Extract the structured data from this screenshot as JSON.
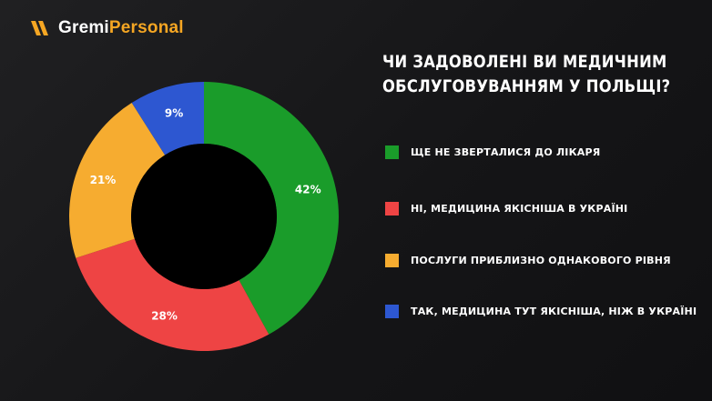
{
  "brand": {
    "part1": "Gremi",
    "part2": "Personal",
    "mark_icon": "double-chevron-logo-icon"
  },
  "title_lines": [
    "ЧИ ЗАДОВОЛЕНІ ВИ МЕДИЧНИМ",
    "ОБСЛУГОВУВАННЯМ У ПОЛЬЩІ?"
  ],
  "colors": {
    "green": "#1a9c2a",
    "red": "#ee4444",
    "orange": "#f6ac30",
    "blue": "#2d57d1",
    "brand_orange": "#f5a623"
  },
  "chart_data": {
    "type": "pie",
    "donut": true,
    "title": "ЧИ ЗАДОВОЛЕНІ ВИ МЕДИЧНИМ ОБСЛУГОВУВАННЯМ У ПОЛЬЩІ?",
    "series": [
      {
        "name": "ЩЕ НЕ ЗВЕРТАЛИСЯ ДО ЛІКАРЯ",
        "value": 42,
        "label": "42%",
        "color": "#1a9c2a"
      },
      {
        "name": "НІ, МЕДИЦИНА ЯКІСНІША В УКРАЇНІ",
        "value": 28,
        "label": "28%",
        "color": "#ee4444"
      },
      {
        "name": "ПОСЛУГИ ПРИБЛИЗНО ОДНАКОВОГО РІВНЯ",
        "value": 21,
        "label": "21%",
        "color": "#f6ac30"
      },
      {
        "name": "ТАК, МЕДИЦИНА ТУТ ЯКІСНІША, НІЖ В УКРАЇНІ",
        "value": 9,
        "label": "9%",
        "color": "#2d57d1"
      }
    ],
    "legend_position": "right"
  }
}
